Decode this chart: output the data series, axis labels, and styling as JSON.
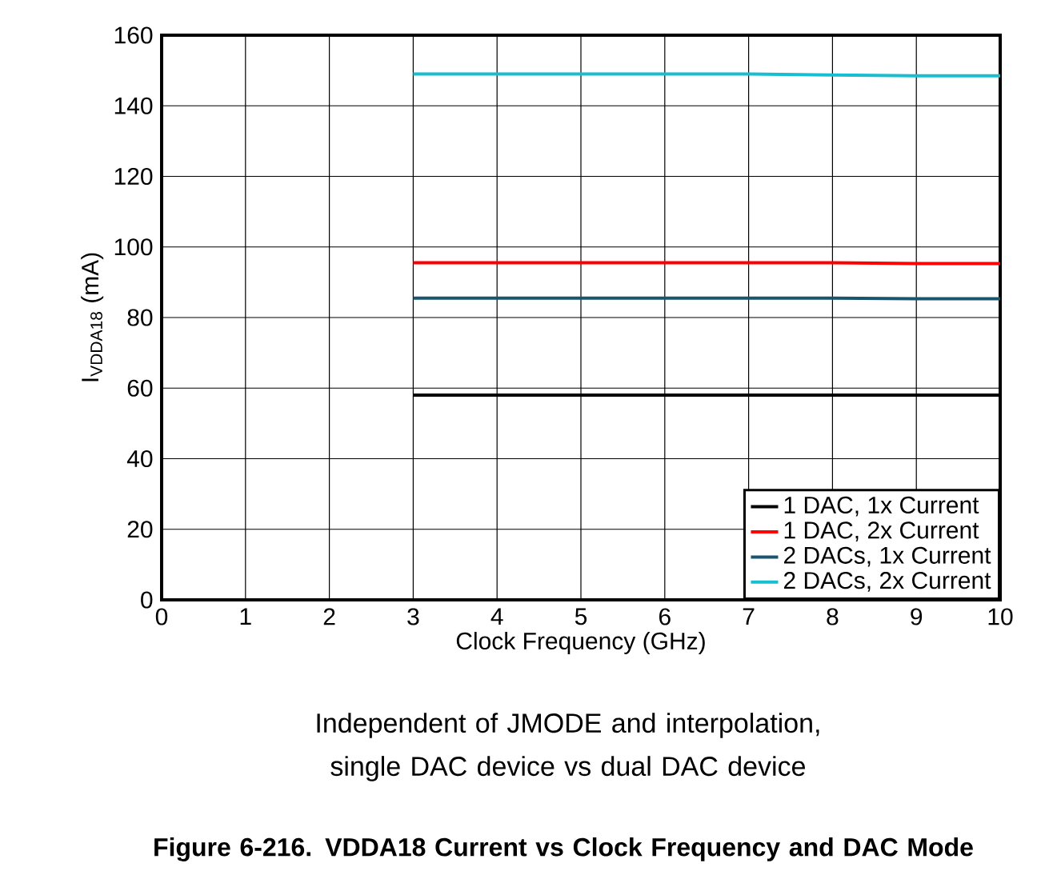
{
  "chart_data": {
    "type": "line",
    "title": "Figure 6-216. VDDA18 Current vs Clock Frequency and DAC Mode",
    "xlabel": "Clock Frequency (GHz)",
    "ylabel": "I$_{VDDA18}$ (mA)",
    "annotations": [
      "Independent of JMODE and interpolation, single DAC device vs dual DAC device"
    ],
    "x": [
      3,
      4,
      5,
      6,
      7,
      8,
      9,
      10
    ],
    "series": [
      {
        "name": "1 DAC, 1x Current",
        "color": "#000000",
        "values": [
          58,
          58,
          58,
          58,
          58,
          58,
          58,
          58
        ]
      },
      {
        "name": "1 DAC, 2x Current",
        "color": "#ff0000",
        "values": [
          95.5,
          95.5,
          95.5,
          95.5,
          95.5,
          95.5,
          95.3,
          95.3
        ]
      },
      {
        "name": "2 DACs, 1x Current",
        "color": "#1a5570",
        "values": [
          85.5,
          85.5,
          85.5,
          85.5,
          85.5,
          85.5,
          85.3,
          85.3
        ]
      },
      {
        "name": "2 DACs, 2x Current",
        "color": "#17becf",
        "values": [
          149,
          149,
          149,
          149,
          149,
          148.7,
          148.5,
          148.5
        ]
      }
    ],
    "xlim": [
      0,
      10
    ],
    "ylim": [
      0,
      160
    ],
    "xticks": [
      0,
      1,
      2,
      3,
      4,
      5,
      6,
      7,
      8,
      9,
      10
    ],
    "yticks": [
      0,
      20,
      40,
      60,
      80,
      100,
      120,
      140,
      160
    ],
    "grid": true,
    "legend": "bottom right",
    "line_style": "solid",
    "marker": "none"
  }
}
